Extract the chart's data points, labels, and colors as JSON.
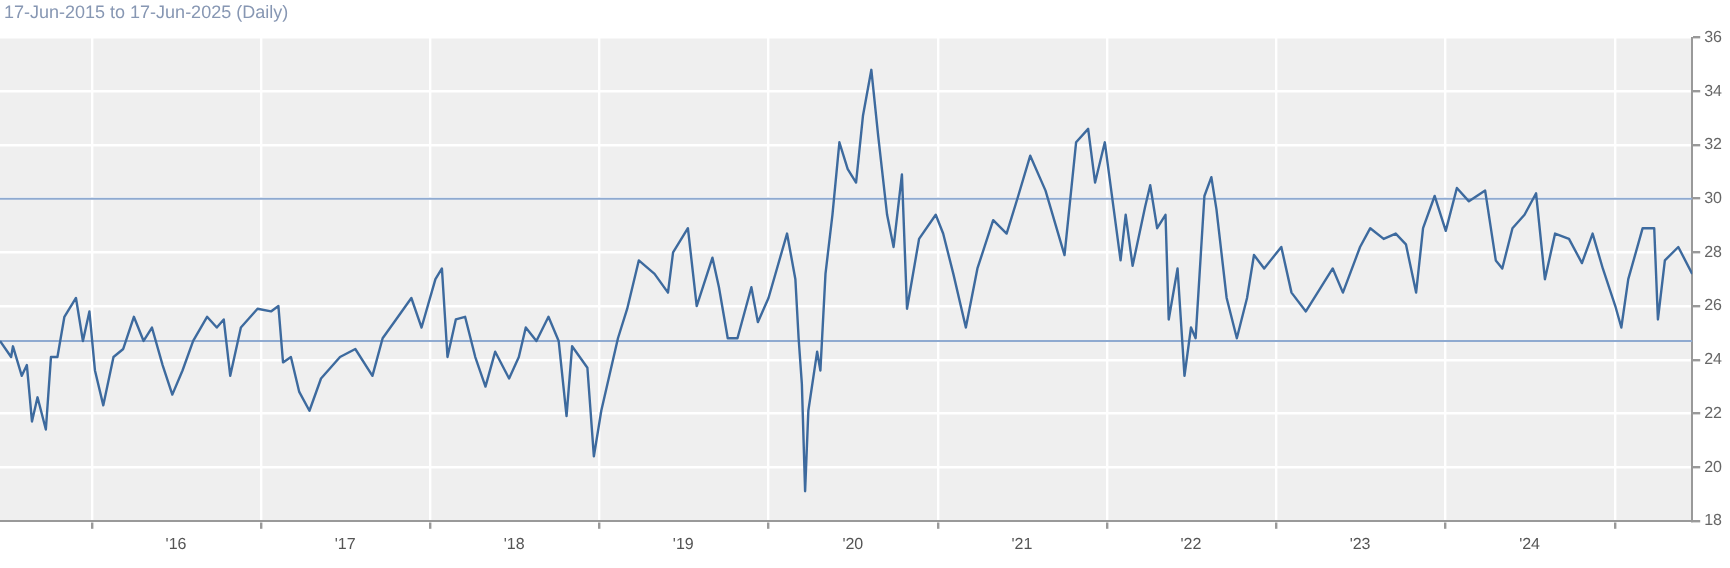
{
  "chart_data": {
    "type": "line",
    "subtitle": "17-Jun-2015 to 17-Jun-2025 (Daily)",
    "x": [
      "2015-06-17",
      "2015-07-11",
      "2015-07-15",
      "2015-08-03",
      "2015-08-14",
      "2015-08-25",
      "2015-09-06",
      "2015-09-24",
      "2015-10-05",
      "2015-10-19",
      "2015-11-03",
      "2015-11-28",
      "2015-12-13",
      "2015-12-27",
      "2016-01-08",
      "2016-01-26",
      "2016-02-17",
      "2016-03-09",
      "2016-04-01",
      "2016-04-22",
      "2016-05-10",
      "2016-06-02",
      "2016-06-23",
      "2016-07-15",
      "2016-08-07",
      "2016-09-06",
      "2016-09-27",
      "2016-10-12",
      "2016-10-26",
      "2016-11-18",
      "2016-12-24",
      "2017-01-22",
      "2017-02-07",
      "2017-02-17",
      "2017-03-06",
      "2017-03-24",
      "2017-04-15",
      "2017-05-10",
      "2017-06-20",
      "2017-07-23",
      "2017-08-29",
      "2017-09-20",
      "2017-10-19",
      "2017-11-21",
      "2017-12-13",
      "2018-01-12",
      "2018-01-26",
      "2018-02-07",
      "2018-02-25",
      "2018-03-17",
      "2018-04-08",
      "2018-04-30",
      "2018-05-21",
      "2018-06-20",
      "2018-07-11",
      "2018-07-26",
      "2018-08-18",
      "2018-09-13",
      "2018-10-05",
      "2018-10-22",
      "2018-11-03",
      "2018-12-06",
      "2018-12-20",
      "2019-01-05",
      "2019-02-10",
      "2019-03-02",
      "2019-03-27",
      "2019-04-30",
      "2019-05-29",
      "2019-06-09",
      "2019-07-11",
      "2019-07-30",
      "2019-09-02",
      "2019-09-16",
      "2019-10-05",
      "2019-10-26",
      "2019-11-25",
      "2019-12-09",
      "2020-01-01",
      "2020-02-10",
      "2020-02-28",
      "2020-03-06",
      "2020-03-13",
      "2020-03-20",
      "2020-03-27",
      "2020-04-15",
      "2020-04-22",
      "2020-05-03",
      "2020-05-18",
      "2020-06-02",
      "2020-06-20",
      "2020-07-08",
      "2020-07-23",
      "2020-08-10",
      "2020-08-25",
      "2020-09-13",
      "2020-09-27",
      "2020-10-15",
      "2020-10-26",
      "2020-11-21",
      "2020-12-27",
      "2021-01-12",
      "2021-02-03",
      "2021-03-02",
      "2021-03-27",
      "2021-04-30",
      "2021-05-29",
      "2021-06-23",
      "2021-07-19",
      "2021-08-21",
      "2021-10-01",
      "2021-10-26",
      "2021-11-21",
      "2021-12-06",
      "2021-12-27",
      "2022-01-30",
      "2022-02-10",
      "2022-02-25",
      "2022-03-24",
      "2022-04-04",
      "2022-04-19",
      "2022-05-07",
      "2022-05-14",
      "2022-06-02",
      "2022-06-17",
      "2022-07-01",
      "2022-07-11",
      "2022-07-30",
      "2022-08-14",
      "2022-08-25",
      "2022-09-16",
      "2022-10-08",
      "2022-10-30",
      "2022-11-14",
      "2022-12-06",
      "2023-01-12",
      "2023-02-03",
      "2023-03-06",
      "2023-04-04",
      "2023-05-03",
      "2023-05-25",
      "2023-07-01",
      "2023-07-23",
      "2023-08-21",
      "2023-09-16",
      "2023-10-08",
      "2023-10-30",
      "2023-11-14",
      "2023-12-09",
      "2024-01-02",
      "2024-01-26",
      "2024-02-21",
      "2024-03-27",
      "2024-04-19",
      "2024-05-03",
      "2024-05-25",
      "2024-06-20",
      "2024-07-15",
      "2024-08-03",
      "2024-08-25",
      "2024-09-24",
      "2024-10-22",
      "2024-11-14",
      "2024-12-06",
      "2025-01-02",
      "2025-01-15",
      "2025-01-30",
      "2025-03-02",
      "2025-03-27",
      "2025-04-04",
      "2025-04-19",
      "2025-05-18",
      "2025-06-17"
    ],
    "series": [
      {
        "color": "#3d6a9e",
        "values": [
          24.7,
          24.1,
          24.5,
          23.4,
          23.8,
          21.7,
          22.6,
          21.4,
          24.1,
          24.1,
          25.6,
          26.3,
          24.7,
          25.8,
          23.6,
          22.3,
          24.1,
          24.4,
          25.6,
          24.7,
          25.2,
          23.8,
          22.7,
          23.6,
          24.7,
          25.6,
          25.2,
          25.5,
          23.4,
          25.2,
          25.9,
          25.8,
          26.0,
          23.9,
          24.1,
          22.8,
          22.1,
          23.3,
          24.1,
          24.4,
          23.4,
          24.8,
          25.5,
          26.3,
          25.2,
          27.0,
          27.4,
          24.1,
          25.5,
          25.6,
          24.1,
          23.0,
          24.3,
          23.3,
          24.1,
          25.2,
          24.7,
          25.6,
          24.7,
          21.9,
          24.5,
          23.7,
          20.4,
          22.1,
          24.8,
          25.9,
          27.7,
          27.2,
          26.5,
          28.0,
          28.9,
          26.0,
          27.8,
          26.7,
          24.8,
          24.8,
          26.7,
          25.4,
          26.3,
          28.7,
          27.0,
          24.8,
          23.1,
          19.1,
          22.1,
          24.3,
          23.6,
          27.2,
          29.4,
          32.1,
          31.1,
          30.6,
          33.1,
          34.8,
          32.3,
          29.4,
          28.2,
          30.9,
          25.9,
          28.5,
          29.4,
          28.7,
          27.2,
          25.2,
          27.4,
          29.2,
          28.7,
          30.1,
          31.6,
          30.3,
          27.9,
          32.1,
          32.6,
          30.6,
          32.1,
          27.7,
          29.4,
          27.5,
          29.7,
          30.5,
          28.9,
          29.4,
          25.5,
          27.4,
          23.4,
          25.2,
          24.8,
          30.1,
          30.8,
          29.6,
          26.3,
          24.8,
          26.3,
          27.9,
          27.4,
          28.2,
          26.5,
          25.8,
          26.6,
          27.4,
          26.5,
          28.2,
          28.9,
          28.5,
          28.7,
          28.3,
          26.5,
          28.9,
          30.1,
          28.8,
          30.4,
          29.9,
          30.3,
          27.7,
          27.4,
          28.9,
          29.4,
          30.2,
          27.0,
          28.7,
          28.5,
          27.6,
          28.7,
          27.4,
          26.0,
          25.2,
          27.0,
          28.9,
          28.9,
          25.5,
          27.7,
          28.2,
          27.2
        ]
      }
    ],
    "xlim": [
      "2015-06-17",
      "2025-06-17"
    ],
    "xticks": [
      {
        "value": "2016-01-01",
        "label": null
      },
      {
        "value": "2016-07-01",
        "label": "'16"
      },
      {
        "value": "2017-01-01",
        "label": null
      },
      {
        "value": "2017-07-01",
        "label": "'17"
      },
      {
        "value": "2018-01-01",
        "label": null
      },
      {
        "value": "2018-07-01",
        "label": "'18"
      },
      {
        "value": "2019-01-01",
        "label": null
      },
      {
        "value": "2019-07-01",
        "label": "'19"
      },
      {
        "value": "2020-01-01",
        "label": null
      },
      {
        "value": "2020-07-01",
        "label": "'20"
      },
      {
        "value": "2021-01-01",
        "label": null
      },
      {
        "value": "2021-07-01",
        "label": "'21"
      },
      {
        "value": "2022-01-01",
        "label": null
      },
      {
        "value": "2022-07-01",
        "label": "'22"
      },
      {
        "value": "2023-01-01",
        "label": null
      },
      {
        "value": "2023-07-01",
        "label": "'23"
      },
      {
        "value": "2024-01-01",
        "label": null
      },
      {
        "value": "2024-07-01",
        "label": "'24"
      },
      {
        "value": "2025-01-01",
        "label": null
      }
    ],
    "ylim": [
      18,
      36
    ],
    "yticks": [
      18,
      20,
      22,
      24,
      26,
      28,
      30,
      32,
      34,
      36
    ],
    "ref_lines": [
      {
        "axis": "y",
        "value": 30.0,
        "color": "#8faad0"
      },
      {
        "axis": "y",
        "value": 24.7,
        "color": "#8faad0"
      }
    ],
    "grid": true,
    "legend": false,
    "marker": "none",
    "line_style": "solid"
  }
}
